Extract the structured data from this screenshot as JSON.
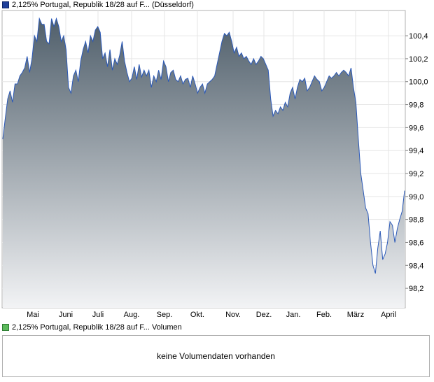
{
  "legend": {
    "price_label": "2,125% Portugal, Republik 18/28 auf F... (Düsseldorf)",
    "volume_label": "2,125% Portugal, Republik 18/28 auf F... Volumen"
  },
  "volume_panel": {
    "message": "keine Volumendaten vorhanden"
  },
  "colors": {
    "line": "#2b59b8",
    "area_top": "#505f6b",
    "area_bottom": "#f2f3f5",
    "price_swatch": "#1f3f99",
    "volume_swatch": "#5cba5c",
    "border": "#b0b0b0"
  },
  "chart_data": {
    "type": "area",
    "title": "",
    "xlabel": "",
    "ylabel": "",
    "ylim": [
      98.03,
      100.62
    ],
    "yticks": [
      "98,2",
      "98,4",
      "98,6",
      "98,8",
      "99,0",
      "99,2",
      "99,4",
      "99,6",
      "99,8",
      "100,0",
      "100,2",
      "100,4"
    ],
    "yticks_values": [
      98.2,
      98.4,
      98.6,
      98.8,
      99.0,
      99.2,
      99.4,
      99.6,
      99.8,
      100.0,
      100.2,
      100.4
    ],
    "x_month_labels": [
      "Mai",
      "Juni",
      "Juli",
      "Aug.",
      "Sep.",
      "Okt.",
      "Nov.",
      "Dez.",
      "Jan.",
      "Feb.",
      "März",
      "April"
    ],
    "grid": true,
    "series": [
      {
        "values": [
          99.5,
          99.68,
          99.85,
          99.92,
          99.82,
          99.98,
          99.98,
          100.05,
          100.08,
          100.12,
          100.22,
          100.08,
          100.2,
          100.4,
          100.35,
          100.55,
          100.5,
          100.5,
          100.35,
          100.33,
          100.55,
          100.48,
          100.55,
          100.48,
          100.35,
          100.4,
          100.28,
          99.95,
          99.9,
          100.05,
          100.1,
          100.0,
          100.18,
          100.28,
          100.35,
          100.25,
          100.4,
          100.35,
          100.45,
          100.48,
          100.43,
          100.2,
          100.25,
          100.13,
          100.28,
          100.1,
          100.2,
          100.15,
          100.23,
          100.35,
          100.18,
          100.08,
          100.0,
          100.03,
          100.13,
          100.02,
          100.15,
          100.04,
          100.1,
          100.05,
          100.1,
          99.95,
          100.05,
          100.0,
          100.1,
          100.02,
          100.18,
          100.13,
          100.0,
          100.08,
          100.1,
          100.02,
          100.0,
          100.05,
          99.98,
          100.02,
          100.03,
          99.95,
          100.05,
          99.98,
          99.9,
          99.95,
          99.98,
          99.9,
          99.98,
          100.0,
          100.02,
          100.05,
          100.15,
          100.25,
          100.35,
          100.42,
          100.4,
          100.43,
          100.35,
          100.25,
          100.3,
          100.22,
          100.25,
          100.2,
          100.22,
          100.18,
          100.15,
          100.2,
          100.15,
          100.18,
          100.22,
          100.2,
          100.15,
          100.1,
          99.85,
          99.7,
          99.75,
          99.72,
          99.78,
          99.75,
          99.82,
          99.78,
          99.9,
          99.95,
          99.85,
          99.95,
          100.02,
          100.0,
          100.03,
          99.92,
          99.95,
          100.0,
          100.05,
          100.02,
          100.0,
          99.92,
          99.95,
          100.0,
          100.05,
          100.03,
          100.05,
          100.08,
          100.05,
          100.08,
          100.1,
          100.08,
          100.05,
          100.12,
          99.95,
          99.82,
          99.5,
          99.2,
          99.05,
          98.9,
          98.85,
          98.6,
          98.4,
          98.33,
          98.55,
          98.7,
          98.45,
          98.5,
          98.6,
          98.78,
          98.75,
          98.6,
          98.72,
          98.8,
          98.87,
          99.05
        ]
      }
    ]
  }
}
